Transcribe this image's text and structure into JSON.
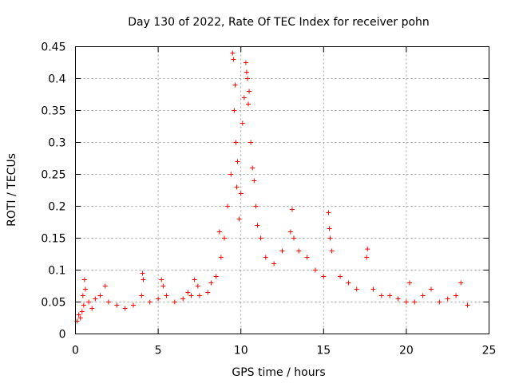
{
  "chart_data": {
    "type": "scatter",
    "title": "Day 130 of 2022, Rate Of TEC Index for receiver pohn",
    "xlabel": "GPS time / hours",
    "ylabel": "ROTI / TECUs",
    "xlim": [
      0,
      25
    ],
    "ylim": [
      0,
      0.45
    ],
    "xticks": [
      0,
      5,
      10,
      15,
      20,
      25
    ],
    "xtick_labels": [
      "0",
      "5",
      "10",
      "15",
      "20",
      "25"
    ],
    "yticks": [
      0,
      0.05,
      0.1,
      0.15,
      0.2,
      0.25,
      0.3,
      0.35,
      0.4,
      0.45
    ],
    "ytick_labels": [
      "0",
      "0.05",
      "0.1",
      "0.15",
      "0.2",
      "0.25",
      "0.3",
      "0.35",
      "0.4",
      "0.45"
    ],
    "grid": true,
    "marker": "plus",
    "color": "#ff0000",
    "series": [
      {
        "name": "ROTI",
        "points": [
          [
            0.1,
            0.02
          ],
          [
            0.2,
            0.03
          ],
          [
            0.3,
            0.025
          ],
          [
            0.4,
            0.035
          ],
          [
            0.45,
            0.06
          ],
          [
            0.5,
            0.045
          ],
          [
            0.55,
            0.085
          ],
          [
            0.6,
            0.07
          ],
          [
            0.8,
            0.05
          ],
          [
            1.0,
            0.04
          ],
          [
            1.2,
            0.055
          ],
          [
            1.5,
            0.06
          ],
          [
            1.8,
            0.075
          ],
          [
            2.0,
            0.05
          ],
          [
            2.5,
            0.045
          ],
          [
            3.0,
            0.04
          ],
          [
            3.5,
            0.045
          ],
          [
            4.0,
            0.06
          ],
          [
            4.05,
            0.095
          ],
          [
            4.1,
            0.085
          ],
          [
            4.5,
            0.05
          ],
          [
            5.0,
            0.055
          ],
          [
            5.2,
            0.085
          ],
          [
            5.3,
            0.075
          ],
          [
            5.5,
            0.06
          ],
          [
            6.0,
            0.05
          ],
          [
            6.5,
            0.055
          ],
          [
            6.8,
            0.065
          ],
          [
            7.0,
            0.06
          ],
          [
            7.2,
            0.085
          ],
          [
            7.4,
            0.075
          ],
          [
            7.5,
            0.06
          ],
          [
            8.0,
            0.065
          ],
          [
            8.2,
            0.08
          ],
          [
            8.5,
            0.09
          ],
          [
            8.7,
            0.16
          ],
          [
            8.8,
            0.12
          ],
          [
            9.0,
            0.15
          ],
          [
            9.2,
            0.2
          ],
          [
            9.4,
            0.25
          ],
          [
            9.5,
            0.44
          ],
          [
            9.55,
            0.43
          ],
          [
            9.6,
            0.35
          ],
          [
            9.65,
            0.39
          ],
          [
            9.7,
            0.3
          ],
          [
            9.75,
            0.23
          ],
          [
            9.8,
            0.27
          ],
          [
            9.9,
            0.18
          ],
          [
            10.0,
            0.22
          ],
          [
            10.1,
            0.33
          ],
          [
            10.2,
            0.37
          ],
          [
            10.3,
            0.425
          ],
          [
            10.35,
            0.41
          ],
          [
            10.4,
            0.4
          ],
          [
            10.45,
            0.36
          ],
          [
            10.5,
            0.38
          ],
          [
            10.6,
            0.3
          ],
          [
            10.7,
            0.26
          ],
          [
            10.8,
            0.24
          ],
          [
            10.9,
            0.2
          ],
          [
            11.0,
            0.17
          ],
          [
            11.2,
            0.15
          ],
          [
            11.5,
            0.12
          ],
          [
            12.0,
            0.11
          ],
          [
            12.5,
            0.13
          ],
          [
            13.0,
            0.16
          ],
          [
            13.1,
            0.195
          ],
          [
            13.2,
            0.15
          ],
          [
            13.5,
            0.13
          ],
          [
            14.0,
            0.12
          ],
          [
            14.5,
            0.1
          ],
          [
            15.0,
            0.09
          ],
          [
            15.3,
            0.19
          ],
          [
            15.35,
            0.165
          ],
          [
            15.4,
            0.15
          ],
          [
            15.5,
            0.13
          ],
          [
            16.0,
            0.09
          ],
          [
            16.5,
            0.08
          ],
          [
            17.0,
            0.07
          ],
          [
            17.6,
            0.12
          ],
          [
            17.65,
            0.133
          ],
          [
            18.0,
            0.07
          ],
          [
            18.5,
            0.06
          ],
          [
            19.0,
            0.06
          ],
          [
            19.5,
            0.055
          ],
          [
            20.0,
            0.05
          ],
          [
            20.2,
            0.08
          ],
          [
            20.5,
            0.05
          ],
          [
            21.0,
            0.06
          ],
          [
            21.5,
            0.07
          ],
          [
            22.0,
            0.05
          ],
          [
            22.5,
            0.055
          ],
          [
            23.0,
            0.06
          ],
          [
            23.3,
            0.08
          ],
          [
            23.7,
            0.045
          ]
        ]
      }
    ]
  }
}
